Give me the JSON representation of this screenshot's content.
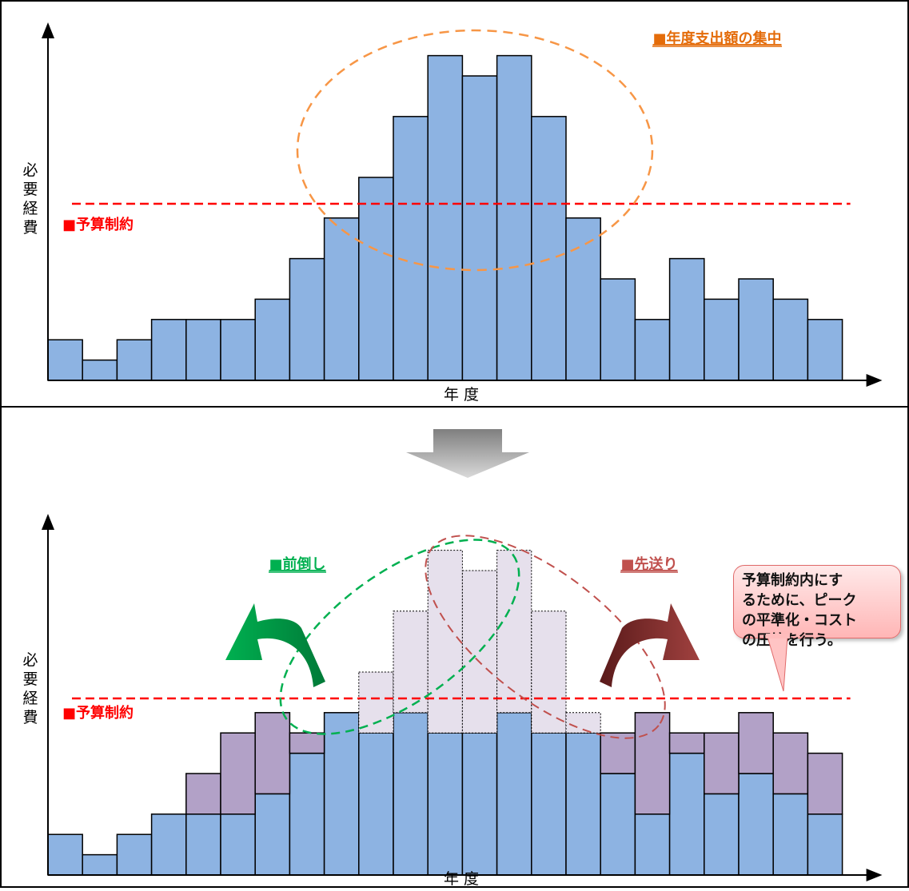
{
  "chart_data": [
    {
      "type": "bar",
      "ylabel": "必要経費",
      "xlabel": "年 度",
      "budget_line": {
        "value": 8.7,
        "label": "■予算制約",
        "color": "#ff0000"
      },
      "annotation": {
        "label": "■年度支出額の集中",
        "color": "#e46c0a"
      },
      "series": [
        {
          "values": [
            2,
            1,
            2,
            3,
            3,
            3,
            4,
            6,
            8,
            10,
            13,
            16,
            15,
            16,
            13,
            8,
            5,
            3,
            6,
            4,
            5,
            4,
            3
          ],
          "color": "#8db3e2"
        }
      ],
      "ylim": [
        0,
        16.5
      ]
    },
    {
      "type": "bar",
      "stacked": true,
      "ylabel": "必要経費",
      "xlabel": "年 度",
      "budget_line": {
        "value": 8.7,
        "label": "■予算制約",
        "color": "#ff0000"
      },
      "annotations": [
        {
          "label": "■前倒し",
          "color": "#00b050"
        },
        {
          "label": "■先送り",
          "color": "#c0504d"
        }
      ],
      "callout": "予算制約内にす\nるために、ピーク\nの平準化・コスト\nの圧縮を行う。",
      "series": [
        {
          "values": [
            2,
            1,
            2,
            3,
            3,
            3,
            4,
            6,
            8,
            7,
            8,
            7,
            7,
            8,
            7,
            7,
            5,
            3,
            6,
            4,
            5,
            4,
            3
          ],
          "color": "#8db3e2"
        },
        {
          "values": [
            0,
            0,
            0,
            0,
            2,
            4,
            4,
            1,
            0,
            0,
            0,
            0,
            0,
            0,
            0,
            0,
            2,
            5,
            1,
            3,
            3,
            3,
            3
          ],
          "color": "#b2a1c7"
        },
        {
          "values": [
            0,
            0,
            0,
            0,
            0,
            0,
            0,
            0,
            0,
            3,
            5,
            9,
            8,
            8,
            6,
            1,
            0,
            0,
            0,
            0,
            0,
            0,
            0
          ],
          "color": "#e6e0ec",
          "style": "dotted"
        }
      ],
      "ylim": [
        0,
        16.5
      ]
    }
  ]
}
